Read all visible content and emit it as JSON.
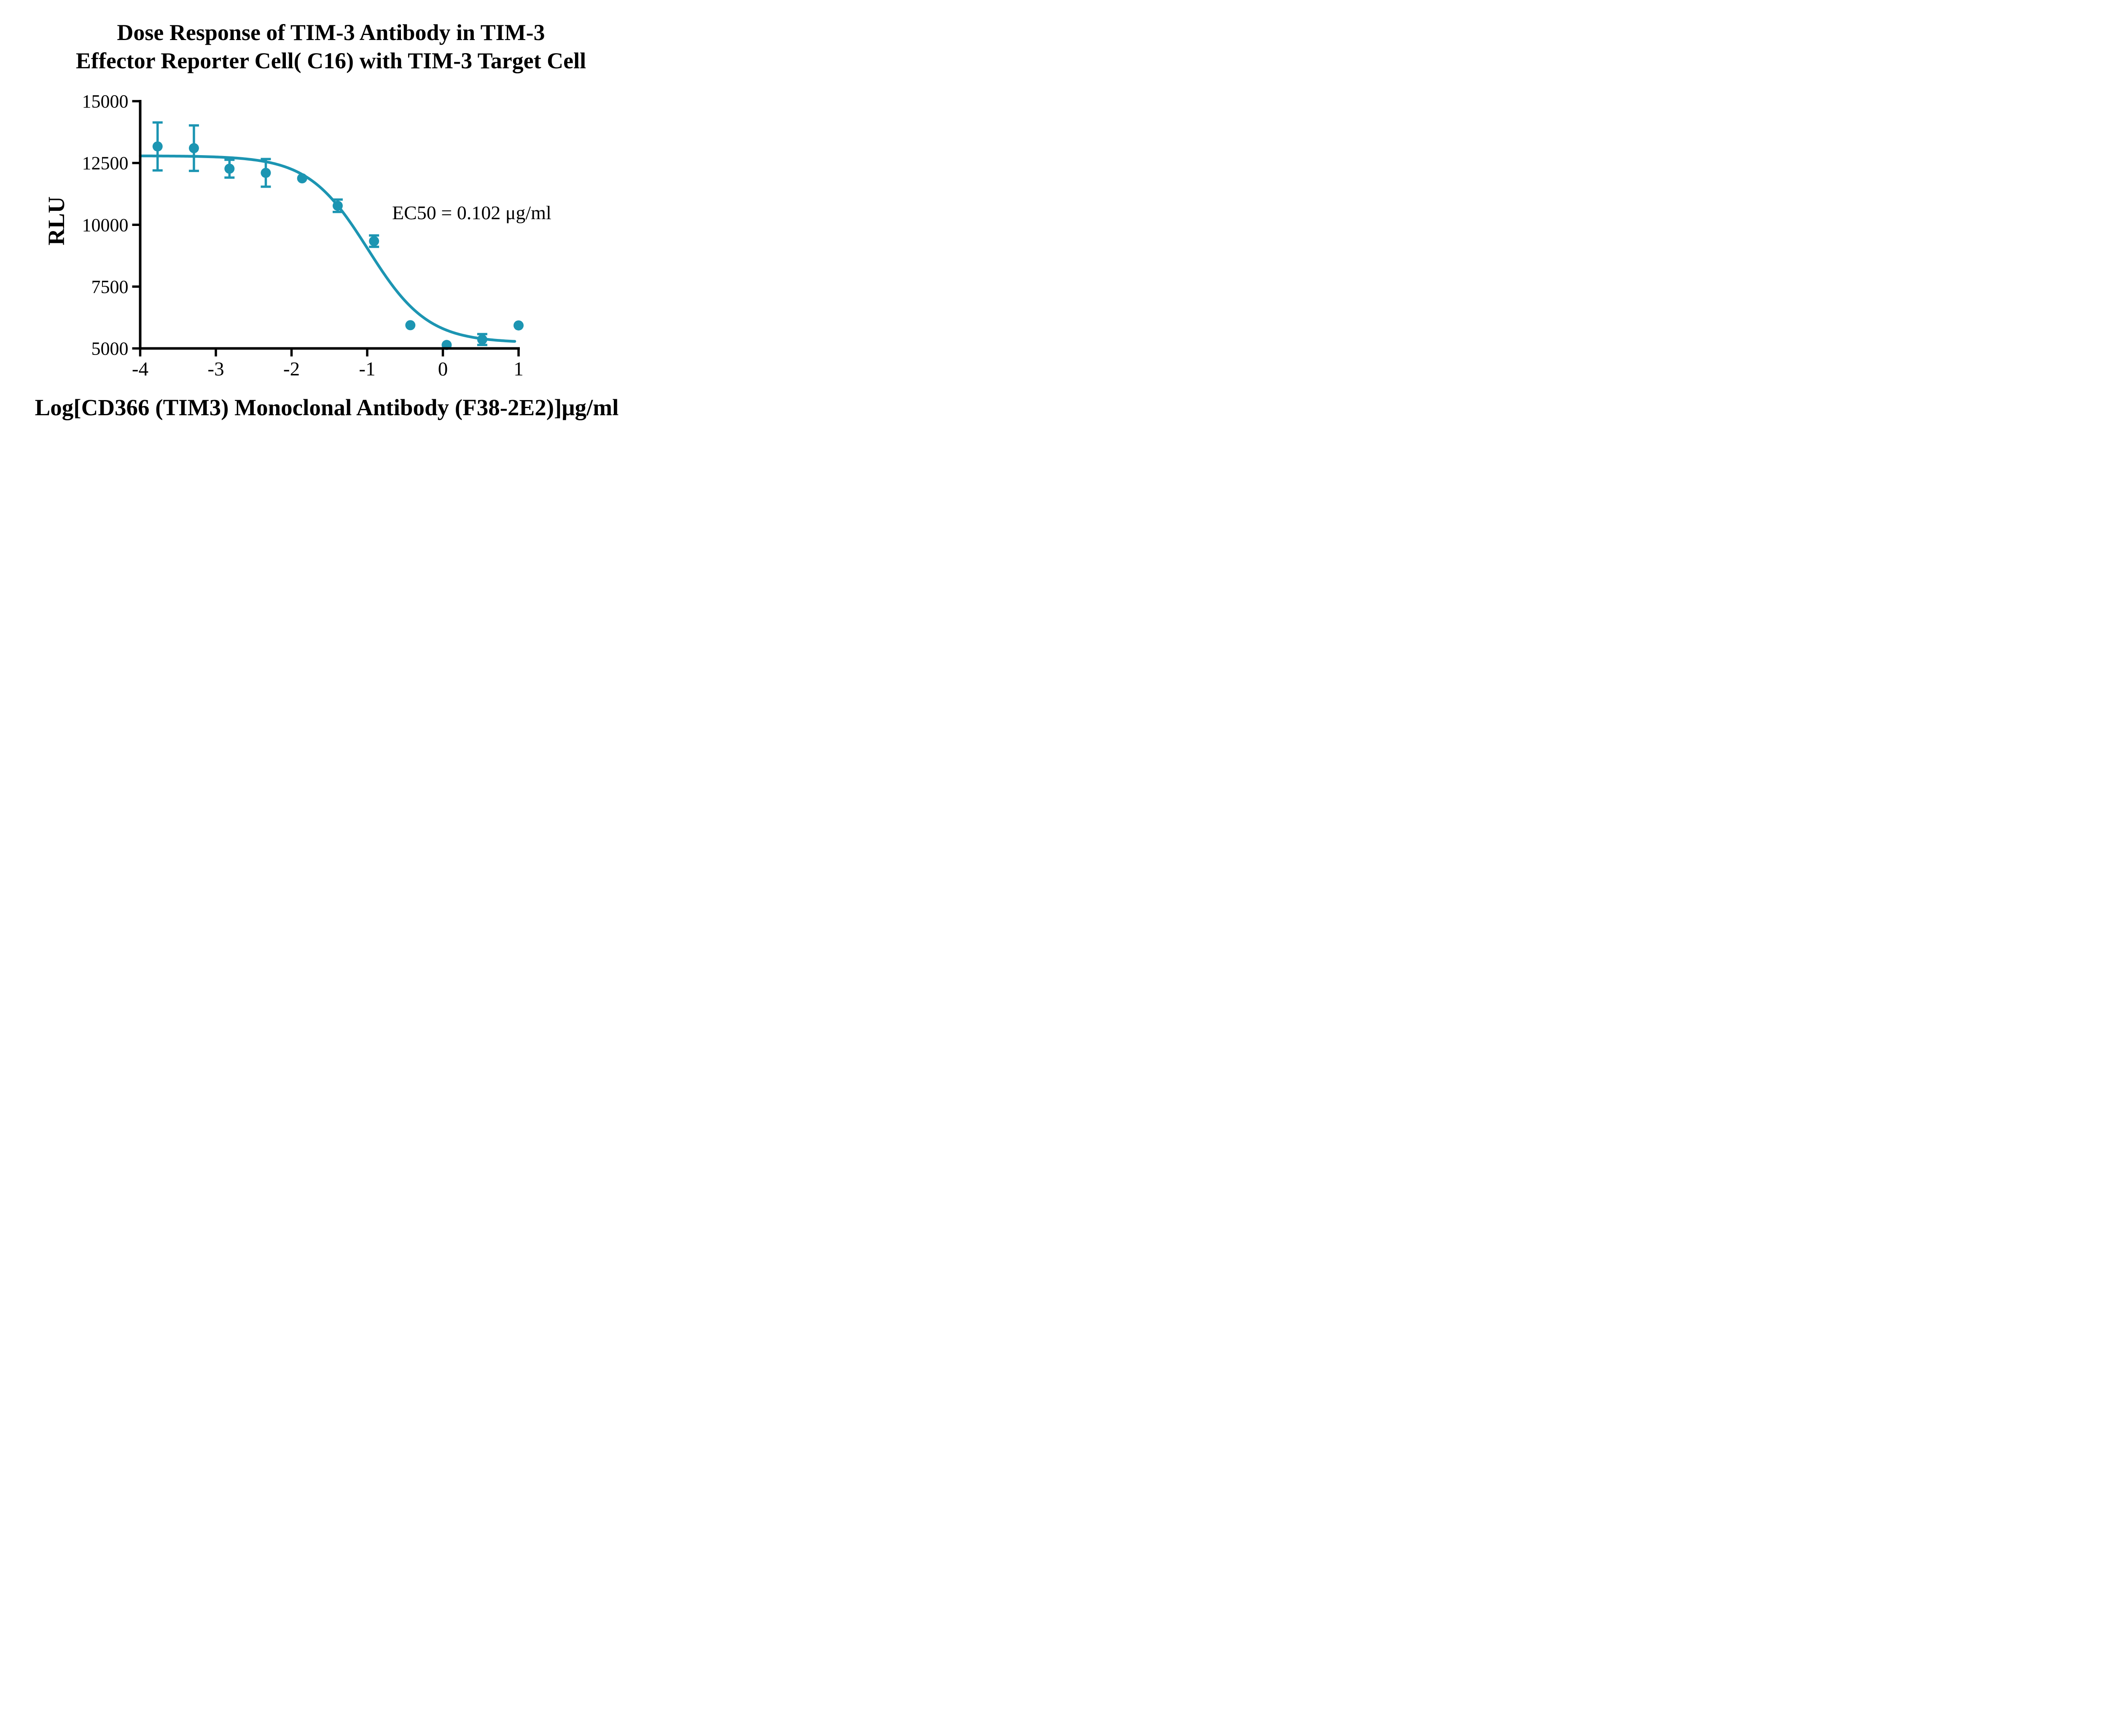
{
  "chart": {
    "title_line1": "Dose Response of TIM-3 Antibody in TIM-3",
    "title_line2": "Effector Reporter Cell( C16)  with TIM-3 Target Cell"
  },
  "annotation": {
    "text": "EC50 = 0.102 μg/ml"
  },
  "chart_data": {
    "type": "scatter",
    "title": "Dose Response of TIM-3 Antibody in TIM-3 Effector Reporter Cell( C16)  with TIM-3 Target Cell",
    "xlabel": "Log[CD366 (TIM3) Monoclonal Antibody (F38-2E2)]μg/ml",
    "ylabel": "RLU",
    "xlim": [
      -4,
      1
    ],
    "ylim": [
      5000,
      15000
    ],
    "x_ticks": [
      -4,
      -3,
      -2,
      -1,
      0,
      1
    ],
    "y_ticks": [
      5000,
      7500,
      10000,
      12500,
      15000
    ],
    "grid": false,
    "legend": false,
    "accent_color": "#1C95B2",
    "axis_color": "#000000",
    "points": [
      {
        "x": -3.77,
        "y": 13170,
        "err": 970
      },
      {
        "x": -3.29,
        "y": 13100,
        "err": 920
      },
      {
        "x": -2.82,
        "y": 12270,
        "err": 360
      },
      {
        "x": -2.34,
        "y": 12100,
        "err": 560
      },
      {
        "x": -1.86,
        "y": 11880,
        "err": 0
      },
      {
        "x": -1.39,
        "y": 10770,
        "err": 250
      },
      {
        "x": -0.91,
        "y": 9340,
        "err": 230
      },
      {
        "x": -0.43,
        "y": 5940,
        "err": 0
      },
      {
        "x": 0.05,
        "y": 5140,
        "err": 0
      },
      {
        "x": 0.52,
        "y": 5360,
        "err": 220
      },
      {
        "x": 1.0,
        "y": 5930,
        "err": 0
      }
    ],
    "fit_curve": {
      "model": "4PL",
      "top": 12790,
      "bottom": 5230,
      "log_ec50": -0.99,
      "hill": 1.1,
      "x_start": -4.0,
      "x_end": 0.955
    },
    "ec50_label": "EC50 = 0.102 μg/ml",
    "ec50_value_ug_ml": 0.102
  }
}
